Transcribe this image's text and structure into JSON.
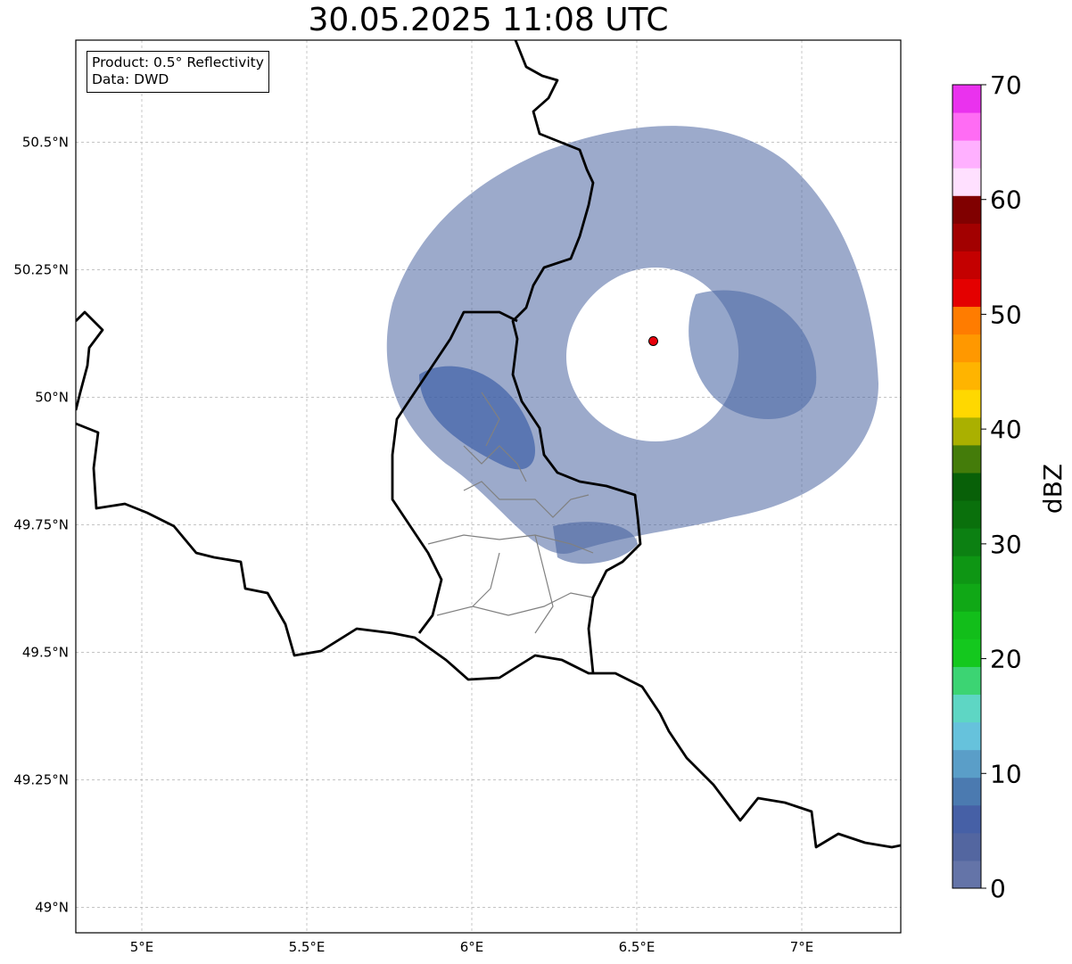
{
  "title": "30.05.2025 11:08 UTC",
  "info": {
    "product": "Product: 0.5° Reflectivity",
    "data": "Data: DWD"
  },
  "map": {
    "lon_range": [
      4.8,
      7.3
    ],
    "lat_range": [
      48.95,
      50.7
    ],
    "lon_ticks": [
      {
        "value": 5.0,
        "label": "5°E"
      },
      {
        "value": 5.5,
        "label": "5.5°E"
      },
      {
        "value": 6.0,
        "label": "6°E"
      },
      {
        "value": 6.5,
        "label": "6.5°E"
      },
      {
        "value": 7.0,
        "label": "7°E"
      }
    ],
    "lat_ticks": [
      {
        "value": 49.0,
        "label": "49°N"
      },
      {
        "value": 49.25,
        "label": "49.25°N"
      },
      {
        "value": 49.5,
        "label": "49.5°N"
      },
      {
        "value": 49.75,
        "label": "49.75°N"
      },
      {
        "value": 50.0,
        "label": "50°N"
      },
      {
        "value": 50.25,
        "label": "50.25°N"
      },
      {
        "value": 50.5,
        "label": "50.5°N"
      }
    ],
    "gridlines": true,
    "radar_site": {
      "lon": 6.55,
      "lat": 50.11,
      "color": "#e8000b"
    },
    "echo_color": "#4a64a0"
  },
  "colorbar": {
    "label": "dBZ",
    "min": 0,
    "max": 70,
    "ticks": [
      0,
      10,
      20,
      30,
      40,
      50,
      60,
      70
    ],
    "colors": [
      "#6474a8",
      "#5366a0",
      "#4660a6",
      "#4b7ab0",
      "#5a9ec8",
      "#66c2dc",
      "#5ed6c4",
      "#3cd473",
      "#14c81e",
      "#12be1a",
      "#10a816",
      "#0e9614",
      "#0c8012",
      "#0a700c",
      "#086008",
      "#447c0a",
      "#aab000",
      "#ffd800",
      "#ffb400",
      "#ff9800",
      "#ff7c00",
      "#e40000",
      "#c40000",
      "#a20000",
      "#800000",
      "#ffe0ff",
      "#ffb0ff",
      "#ff6cf4",
      "#ea32ee"
    ]
  }
}
